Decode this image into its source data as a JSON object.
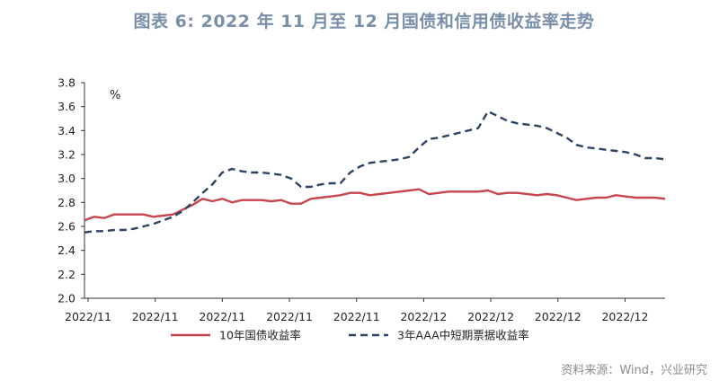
{
  "title": "图表 6:  2022 年 11 月至 12 月国债和信用债收益率走势",
  "source": "资料来源：Wind，兴业研究",
  "colors": {
    "title": "#7a8fa8",
    "series1": "#c8464f",
    "series2": "#2e4263",
    "axis": "#333333",
    "text": "#222222"
  },
  "chart_data": {
    "type": "line",
    "title": "图表 6:  2022 年 11 月至 12 月国债和信用债收益率走势",
    "ylabel": "%",
    "xlabel": "",
    "ylim": [
      2.0,
      3.8
    ],
    "ytick_labels": [
      "2.0",
      "2.2",
      "2.4",
      "2.6",
      "2.8",
      "3.0",
      "3.2",
      "3.4",
      "3.6",
      "3.8"
    ],
    "xtick_labels": [
      "2022/11",
      "2022/11",
      "2022/11",
      "2022/11",
      "2022/11",
      "2022/12",
      "2022/12",
      "2022/12",
      "2022/12"
    ],
    "grid": false,
    "legend_position": "bottom",
    "series": [
      {
        "name": "10年国债收益率",
        "style": "solid",
        "values": [
          2.65,
          2.68,
          2.67,
          2.7,
          2.7,
          2.7,
          2.7,
          2.68,
          2.69,
          2.7,
          2.74,
          2.78,
          2.83,
          2.81,
          2.83,
          2.8,
          2.82,
          2.82,
          2.82,
          2.81,
          2.82,
          2.79,
          2.79,
          2.83,
          2.84,
          2.85,
          2.86,
          2.88,
          2.88,
          2.86,
          2.87,
          2.88,
          2.89,
          2.9,
          2.91,
          2.87,
          2.88,
          2.89,
          2.89,
          2.89,
          2.89,
          2.9,
          2.87,
          2.88,
          2.88,
          2.87,
          2.86,
          2.87,
          2.86,
          2.84,
          2.82,
          2.83,
          2.84,
          2.84,
          2.86,
          2.85,
          2.84,
          2.84,
          2.84,
          2.83
        ]
      },
      {
        "name": "3年AAA中短期票据收益率",
        "style": "dashed",
        "values": [
          2.55,
          2.56,
          2.56,
          2.57,
          2.57,
          2.58,
          2.6,
          2.62,
          2.65,
          2.68,
          2.73,
          2.8,
          2.88,
          2.95,
          3.05,
          3.08,
          3.06,
          3.05,
          3.05,
          3.04,
          3.03,
          3.0,
          2.93,
          2.93,
          2.95,
          2.96,
          2.96,
          3.05,
          3.1,
          3.13,
          3.14,
          3.15,
          3.16,
          3.18,
          3.26,
          3.33,
          3.34,
          3.36,
          3.38,
          3.4,
          3.42,
          3.56,
          3.52,
          3.48,
          3.46,
          3.45,
          3.44,
          3.42,
          3.38,
          3.34,
          3.28,
          3.26,
          3.25,
          3.24,
          3.23,
          3.22,
          3.2,
          3.17,
          3.17,
          3.16
        ]
      }
    ]
  }
}
